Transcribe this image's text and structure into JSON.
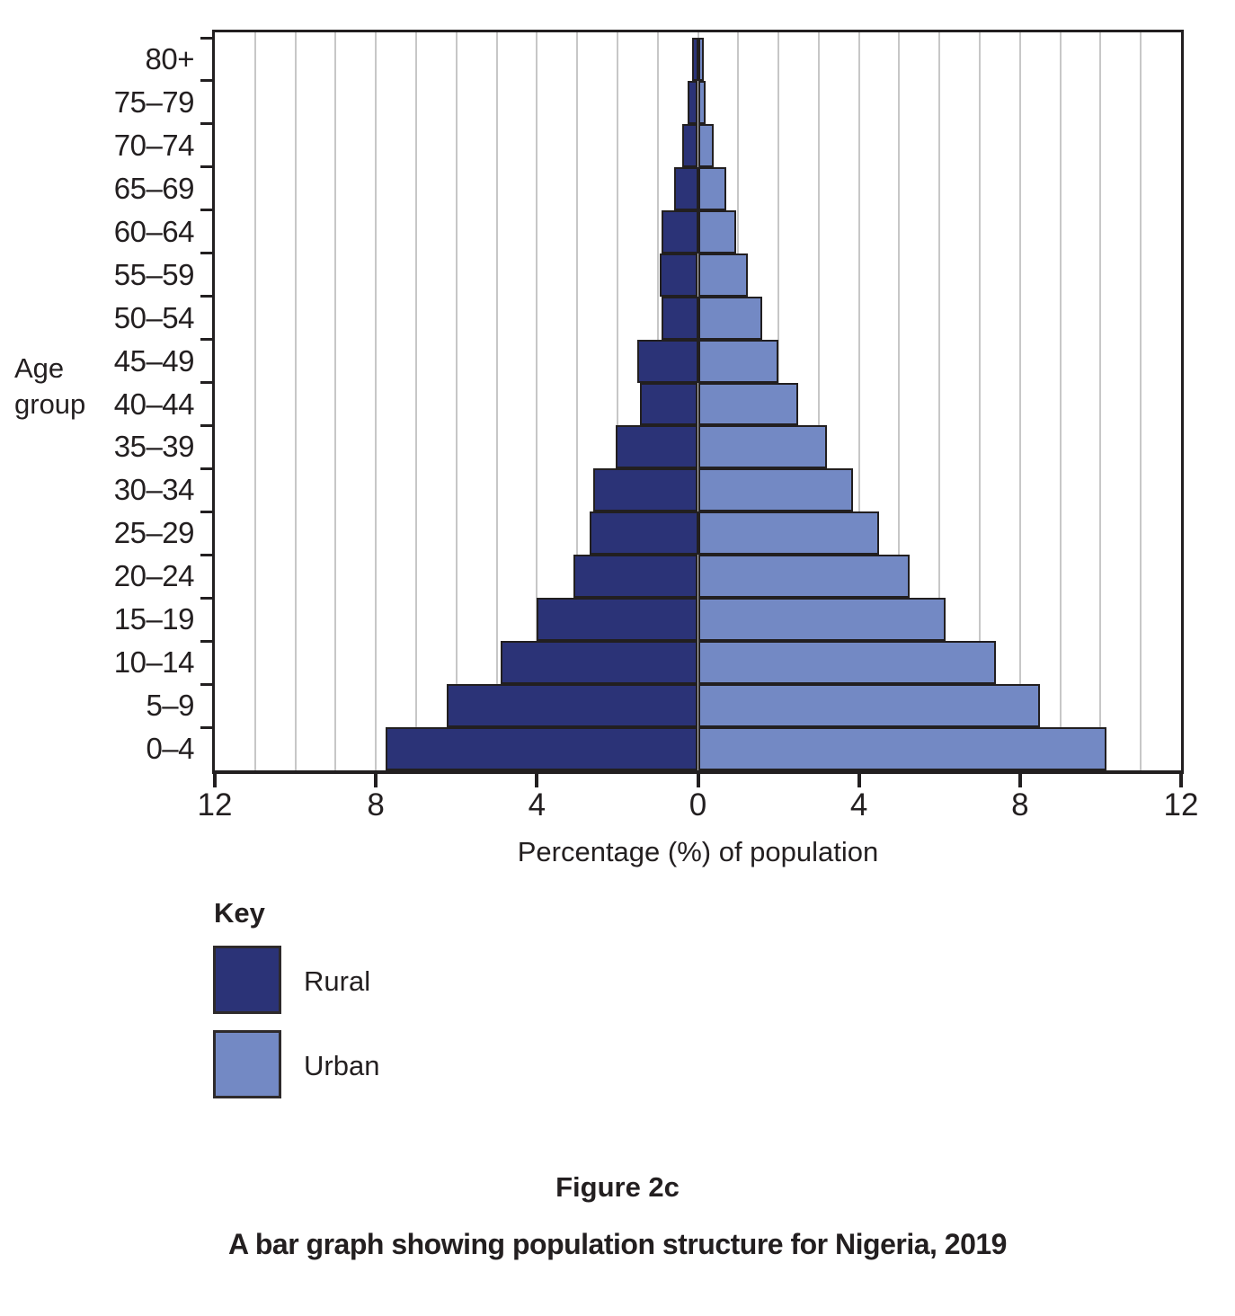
{
  "figure": {
    "figure_label": "Figure 2c",
    "caption": "A bar graph showing population structure for Nigeria, 2019"
  },
  "key": {
    "title": "Key",
    "items": [
      {
        "label": "Rural",
        "color": "#2b3377"
      },
      {
        "label": "Urban",
        "color": "#7389c4"
      }
    ]
  },
  "axes": {
    "x_label": "Percentage (%) of population",
    "y_label_lines": [
      "Age",
      "group"
    ],
    "x_tick_labels": [
      "12",
      "8",
      "4",
      "0",
      "4",
      "8",
      "12"
    ],
    "x_tick_positions": [
      -12,
      -8,
      -4,
      0,
      4,
      8,
      12
    ],
    "x_max_each_side": 12,
    "gridline_step": 1
  },
  "chart_data": {
    "type": "bar",
    "subtype": "population_pyramid",
    "title": "A bar graph showing population structure for Nigeria, 2019",
    "xlabel": "Percentage (%) of population",
    "ylabel": "Age group",
    "x_range_each_side": [
      0,
      12
    ],
    "grid": true,
    "legend_position": "below-left",
    "categories_top_to_bottom": [
      "80+",
      "75–79",
      "70–74",
      "65–69",
      "60–64",
      "55–59",
      "50–54",
      "45–49",
      "40–44",
      "35–39",
      "30–34",
      "25–29",
      "20–24",
      "15–19",
      "10–14",
      "5–9",
      "0–4"
    ],
    "series": [
      {
        "name": "Rural",
        "side": "left",
        "color": "#2b3377",
        "values": [
          0.15,
          0.25,
          0.4,
          0.6,
          0.9,
          0.95,
          0.9,
          1.5,
          1.45,
          2.05,
          2.6,
          2.7,
          3.1,
          4.0,
          4.9,
          6.25,
          7.75
        ]
      },
      {
        "name": "Urban",
        "side": "right",
        "color": "#7389c4",
        "values": [
          0.15,
          0.2,
          0.4,
          0.7,
          0.95,
          1.25,
          1.6,
          2.0,
          2.5,
          3.2,
          3.85,
          4.5,
          5.25,
          6.15,
          7.4,
          8.5,
          10.15
        ]
      }
    ],
    "values_unit": "percent of population"
  }
}
